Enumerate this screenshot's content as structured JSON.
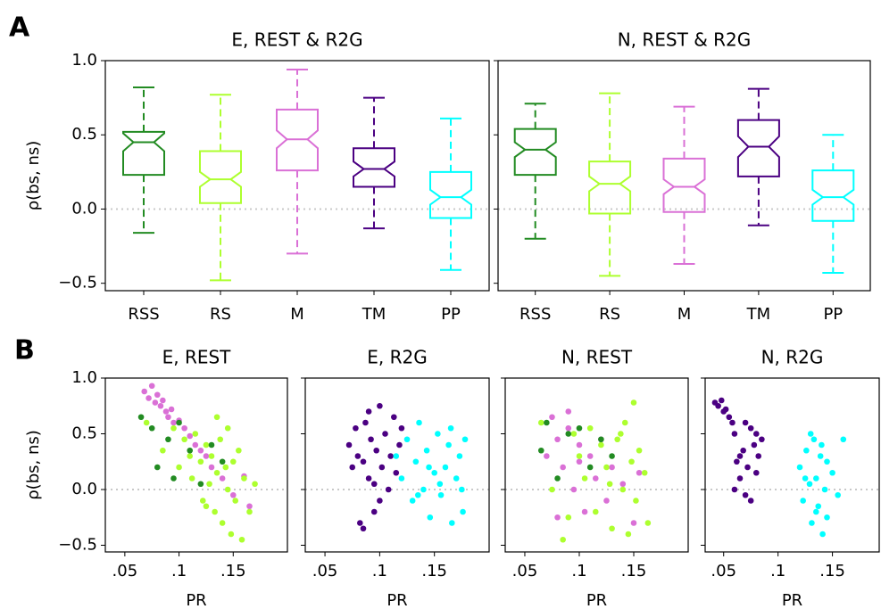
{
  "panel_labels": [
    "A",
    "B"
  ],
  "chart_data": [
    {
      "type": "box",
      "title": "E, REST & R2G",
      "ylabel": "ρ(bs, ns)",
      "categories": [
        "RSS",
        "RS",
        "M",
        "TM",
        "PP"
      ],
      "colors": [
        "#228b22",
        "#adff2f",
        "#da70d6",
        "#4b0082",
        "#00ffff"
      ],
      "boxes": [
        {
          "whislo": -0.16,
          "q1": 0.23,
          "med": 0.45,
          "q3": 0.52,
          "whishi": 0.82,
          "notchlo": 0.39,
          "notchhi": 0.51
        },
        {
          "whislo": -0.48,
          "q1": 0.04,
          "med": 0.2,
          "q3": 0.39,
          "whishi": 0.77,
          "notchlo": 0.15,
          "notchhi": 0.25
        },
        {
          "whislo": -0.3,
          "q1": 0.26,
          "med": 0.47,
          "q3": 0.67,
          "whishi": 0.94,
          "notchlo": 0.41,
          "notchhi": 0.53
        },
        {
          "whislo": -0.13,
          "q1": 0.15,
          "med": 0.27,
          "q3": 0.41,
          "whishi": 0.75,
          "notchlo": 0.22,
          "notchhi": 0.32
        },
        {
          "whislo": -0.41,
          "q1": -0.06,
          "med": 0.08,
          "q3": 0.25,
          "whishi": 0.61,
          "notchlo": 0.03,
          "notchhi": 0.13
        }
      ],
      "ylim": [
        -0.55,
        1.0
      ],
      "yticks": [
        {
          "value": -0.5,
          "label": "−0.5"
        },
        {
          "value": 0,
          "label": "0.0"
        },
        {
          "value": 0.5,
          "label": "0.5"
        },
        {
          "value": 1,
          "label": "1.0"
        }
      ],
      "hline": 0
    },
    {
      "type": "box",
      "title": "N, REST & R2G",
      "categories": [
        "RSS",
        "RS",
        "M",
        "TM",
        "PP"
      ],
      "colors": [
        "#228b22",
        "#adff2f",
        "#da70d6",
        "#4b0082",
        "#00ffff"
      ],
      "boxes": [
        {
          "whislo": -0.2,
          "q1": 0.23,
          "med": 0.4,
          "q3": 0.54,
          "whishi": 0.71,
          "notchlo": 0.35,
          "notchhi": 0.45
        },
        {
          "whislo": -0.45,
          "q1": -0.03,
          "med": 0.17,
          "q3": 0.32,
          "whishi": 0.78,
          "notchlo": 0.12,
          "notchhi": 0.22
        },
        {
          "whislo": -0.37,
          "q1": -0.02,
          "med": 0.15,
          "q3": 0.34,
          "whishi": 0.69,
          "notchlo": 0.1,
          "notchhi": 0.2
        },
        {
          "whislo": -0.11,
          "q1": 0.22,
          "med": 0.42,
          "q3": 0.6,
          "whishi": 0.81,
          "notchlo": 0.35,
          "notchhi": 0.49
        },
        {
          "whislo": -0.43,
          "q1": -0.08,
          "med": 0.08,
          "q3": 0.26,
          "whishi": 0.5,
          "notchlo": 0.03,
          "notchhi": 0.13
        }
      ],
      "ylim": [
        -0.55,
        1.0
      ],
      "yticks": [
        -0.5,
        0,
        0.5,
        1
      ],
      "show_yticklabels": false,
      "hline": 0
    },
    {
      "type": "scatter",
      "title": "E, REST",
      "ylabel": "ρ(bs, ns)",
      "xlabel": "PR",
      "xlim": [
        0.032,
        0.2
      ],
      "ylim": [
        -0.56,
        1.0
      ],
      "xticks": [
        {
          "value": 0.05,
          "label": ".05"
        },
        {
          "value": 0.1,
          "label": ".1"
        },
        {
          "value": 0.15,
          "label": ".15"
        }
      ],
      "yticks": [
        {
          "value": -0.5,
          "label": "−0.5"
        },
        {
          "value": 0,
          "label": "0.0"
        },
        {
          "value": 0.5,
          "label": "0.5"
        },
        {
          "value": 1,
          "label": "1.0"
        }
      ],
      "hline": 0,
      "series": [
        {
          "color": "#da70d6",
          "x": [
            0.068,
            0.072,
            0.075,
            0.078,
            0.08,
            0.083,
            0.085,
            0.088,
            0.09,
            0.093,
            0.095,
            0.1,
            0.105,
            0.11,
            0.115,
            0.12,
            0.125,
            0.13,
            0.14,
            0.15,
            0.16,
            0.165
          ],
          "values": [
            0.88,
            0.82,
            0.93,
            0.78,
            0.85,
            0.75,
            0.8,
            0.7,
            0.65,
            0.72,
            0.6,
            0.62,
            0.55,
            0.48,
            0.4,
            0.35,
            0.3,
            0.2,
            0.1,
            -0.05,
            0.12,
            -0.15
          ]
        },
        {
          "color": "#adff2f",
          "x": [
            0.07,
            0.085,
            0.095,
            0.1,
            0.105,
            0.11,
            0.112,
            0.115,
            0.12,
            0.122,
            0.125,
            0.128,
            0.13,
            0.133,
            0.135,
            0.138,
            0.14,
            0.143,
            0.145,
            0.148,
            0.15,
            0.152,
            0.155,
            0.158,
            0.16,
            0.165,
            0.17,
            0.135,
            0.125,
            0.145
          ],
          "values": [
            0.6,
            0.35,
            0.55,
            0.2,
            0.45,
            0.3,
            0.1,
            0.5,
            0.25,
            -0.1,
            0.4,
            0.05,
            0.3,
            -0.2,
            0.15,
            0.45,
            -0.3,
            0.2,
            0.0,
            -0.4,
            0.25,
            -0.1,
            0.35,
            -0.45,
            0.1,
            -0.2,
            0.05,
            0.65,
            -0.15,
            0.55
          ]
        },
        {
          "color": "#228b22",
          "x": [
            0.065,
            0.075,
            0.08,
            0.09,
            0.095,
            0.1,
            0.11,
            0.12,
            0.13,
            0.14
          ],
          "values": [
            0.65,
            0.55,
            0.2,
            0.45,
            0.1,
            0.6,
            0.35,
            0.05,
            0.4,
            0.25
          ]
        }
      ]
    },
    {
      "type": "scatter",
      "title": "E, R2G",
      "xlabel": "PR",
      "xlim": [
        0.032,
        0.2
      ],
      "ylim": [
        -0.56,
        1.0
      ],
      "xticks": [
        {
          "value": 0.05,
          "label": ".05"
        },
        {
          "value": 0.1,
          "label": ".1"
        },
        {
          "value": 0.15,
          "label": ".15"
        }
      ],
      "yticks": [
        -0.5,
        0,
        0.5,
        1
      ],
      "show_yticklabels": false,
      "hline": 0,
      "series": [
        {
          "color": "#4b0082",
          "x": [
            0.072,
            0.075,
            0.078,
            0.08,
            0.082,
            0.085,
            0.087,
            0.09,
            0.092,
            0.095,
            0.097,
            0.1,
            0.102,
            0.105,
            0.108,
            0.11,
            0.113,
            0.115,
            0.118,
            0.12,
            0.085,
            0.095,
            0.09,
            0.1
          ],
          "values": [
            0.4,
            0.2,
            0.55,
            0.3,
            -0.3,
            0.25,
            0.6,
            0.1,
            0.45,
            -0.2,
            0.35,
            0.75,
            0.2,
            0.5,
            0.0,
            0.3,
            0.65,
            0.15,
            0.4,
            0.55,
            -0.35,
            0.05,
            0.7,
            -0.1
          ]
        },
        {
          "color": "#00ffff",
          "x": [
            0.115,
            0.12,
            0.125,
            0.13,
            0.133,
            0.136,
            0.14,
            0.143,
            0.146,
            0.15,
            0.153,
            0.156,
            0.16,
            0.163,
            0.166,
            0.17,
            0.173,
            0.176,
            0.178,
            0.135,
            0.145,
            0.155,
            0.165,
            0.175
          ],
          "values": [
            0.3,
            0.1,
            0.45,
            -0.1,
            0.25,
            0.6,
            0.0,
            0.35,
            -0.25,
            0.15,
            0.5,
            -0.05,
            0.2,
            0.4,
            -0.3,
            0.1,
            0.3,
            -0.2,
            0.45,
            -0.05,
            0.2,
            0.05,
            0.55,
            0.0
          ]
        }
      ]
    },
    {
      "type": "scatter",
      "title": "N, REST",
      "xlabel": "PR",
      "xlim": [
        0.032,
        0.2
      ],
      "ylim": [
        -0.56,
        1.0
      ],
      "xticks": [
        {
          "value": 0.05,
          "label": ".05"
        },
        {
          "value": 0.1,
          "label": ".1"
        },
        {
          "value": 0.15,
          "label": ".15"
        }
      ],
      "yticks": [
        -0.5,
        0,
        0.5,
        1
      ],
      "show_yticklabels": false,
      "hline": 0,
      "series": [
        {
          "color": "#da70d6",
          "x": [
            0.07,
            0.075,
            0.08,
            0.085,
            0.09,
            0.095,
            0.1,
            0.105,
            0.11,
            0.115,
            0.12,
            0.125,
            0.13,
            0.14,
            0.15,
            0.155,
            0.08,
            0.09,
            0.1
          ],
          "values": [
            0.3,
            0.65,
            0.45,
            0.2,
            0.55,
            0.0,
            0.4,
            -0.2,
            0.3,
            0.1,
            0.45,
            -0.1,
            0.2,
            0.05,
            -0.3,
            0.15,
            -0.25,
            0.7,
            0.25
          ]
        },
        {
          "color": "#adff2f",
          "x": [
            0.065,
            0.075,
            0.085,
            0.095,
            0.1,
            0.105,
            0.11,
            0.115,
            0.12,
            0.125,
            0.13,
            0.135,
            0.14,
            0.142,
            0.145,
            0.148,
            0.15,
            0.152,
            0.155,
            0.16,
            0.163,
            0.138,
            0.128,
            0.09
          ],
          "values": [
            0.6,
            0.0,
            -0.45,
            0.5,
            0.3,
            0.1,
            0.55,
            -0.2,
            0.4,
            0.2,
            -0.35,
            0.45,
            0.0,
            0.6,
            -0.4,
            0.25,
            0.78,
            -0.1,
            0.35,
            0.15,
            -0.3,
            0.5,
            0.05,
            -0.25
          ]
        },
        {
          "color": "#228b22",
          "x": [
            0.065,
            0.07,
            0.08,
            0.09,
            0.1,
            0.11,
            0.12,
            0.13
          ],
          "values": [
            0.35,
            0.6,
            0.1,
            0.5,
            0.55,
            0.2,
            0.45,
            0.3
          ]
        }
      ]
    },
    {
      "type": "scatter",
      "title": "N, R2G",
      "xlabel": "PR",
      "xlim": [
        0.033,
        0.193
      ],
      "ylim": [
        -0.56,
        1.0
      ],
      "xticks": [
        {
          "value": 0.05,
          "label": ".05"
        },
        {
          "value": 0.1,
          "label": ".1"
        },
        {
          "value": 0.15,
          "label": ".15"
        }
      ],
      "yticks": [
        -0.5,
        0,
        0.5,
        1
      ],
      "show_yticklabels": false,
      "hline": 0,
      "series": [
        {
          "color": "#4b0082",
          "x": [
            0.042,
            0.045,
            0.048,
            0.05,
            0.052,
            0.055,
            0.058,
            0.06,
            0.062,
            0.065,
            0.068,
            0.07,
            0.072,
            0.075,
            0.078,
            0.08,
            0.082,
            0.085,
            0.06,
            0.065,
            0.07,
            0.075,
            0.08
          ],
          "values": [
            0.78,
            0.75,
            0.8,
            0.7,
            0.72,
            0.65,
            0.6,
            0.5,
            0.25,
            0.1,
            0.35,
            -0.05,
            0.2,
            0.55,
            0.4,
            0.5,
            0.3,
            0.45,
            0.0,
            0.3,
            0.6,
            -0.1,
            0.15
          ]
        },
        {
          "color": "#00ffff",
          "x": [
            0.12,
            0.123,
            0.126,
            0.129,
            0.131,
            0.133,
            0.135,
            0.137,
            0.139,
            0.141,
            0.143,
            0.145,
            0.15,
            0.155,
            0.16,
            0.13,
            0.135,
            0.14,
            0.125,
            0.145
          ],
          "values": [
            0.2,
            -0.1,
            0.35,
            0.05,
            -0.3,
            0.45,
            0.1,
            -0.15,
            0.3,
            -0.4,
            0.0,
            0.25,
            0.15,
            -0.05,
            0.45,
            0.5,
            -0.2,
            0.4,
            0.1,
            -0.25
          ]
        }
      ]
    }
  ]
}
